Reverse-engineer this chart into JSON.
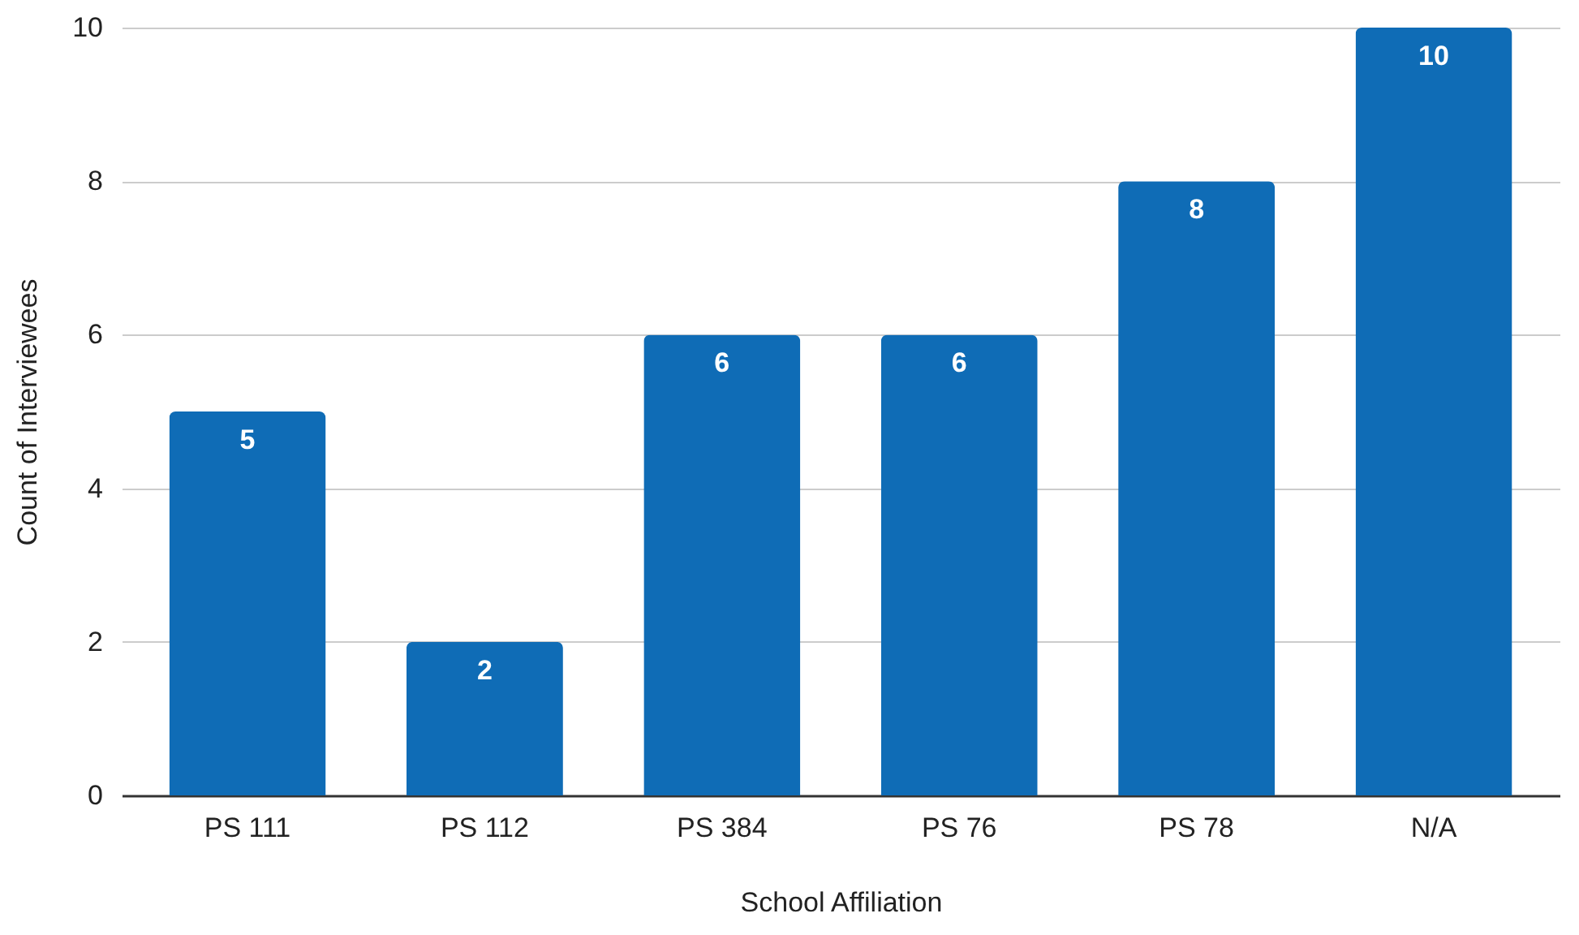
{
  "chart_data": {
    "type": "bar",
    "xlabel": "School Affiliation",
    "ylabel": "Count of Interviewees",
    "categories": [
      "PS 111",
      "PS 112",
      "PS 384",
      "PS 76",
      "PS 78",
      "N/A"
    ],
    "values": [
      5,
      2,
      6,
      6,
      8,
      10
    ],
    "color": "#0f6cb6",
    "ylim": [
      0,
      10
    ],
    "yticks": [
      0,
      2,
      4,
      6,
      8,
      10
    ],
    "grid": "y",
    "data_labels": true
  }
}
